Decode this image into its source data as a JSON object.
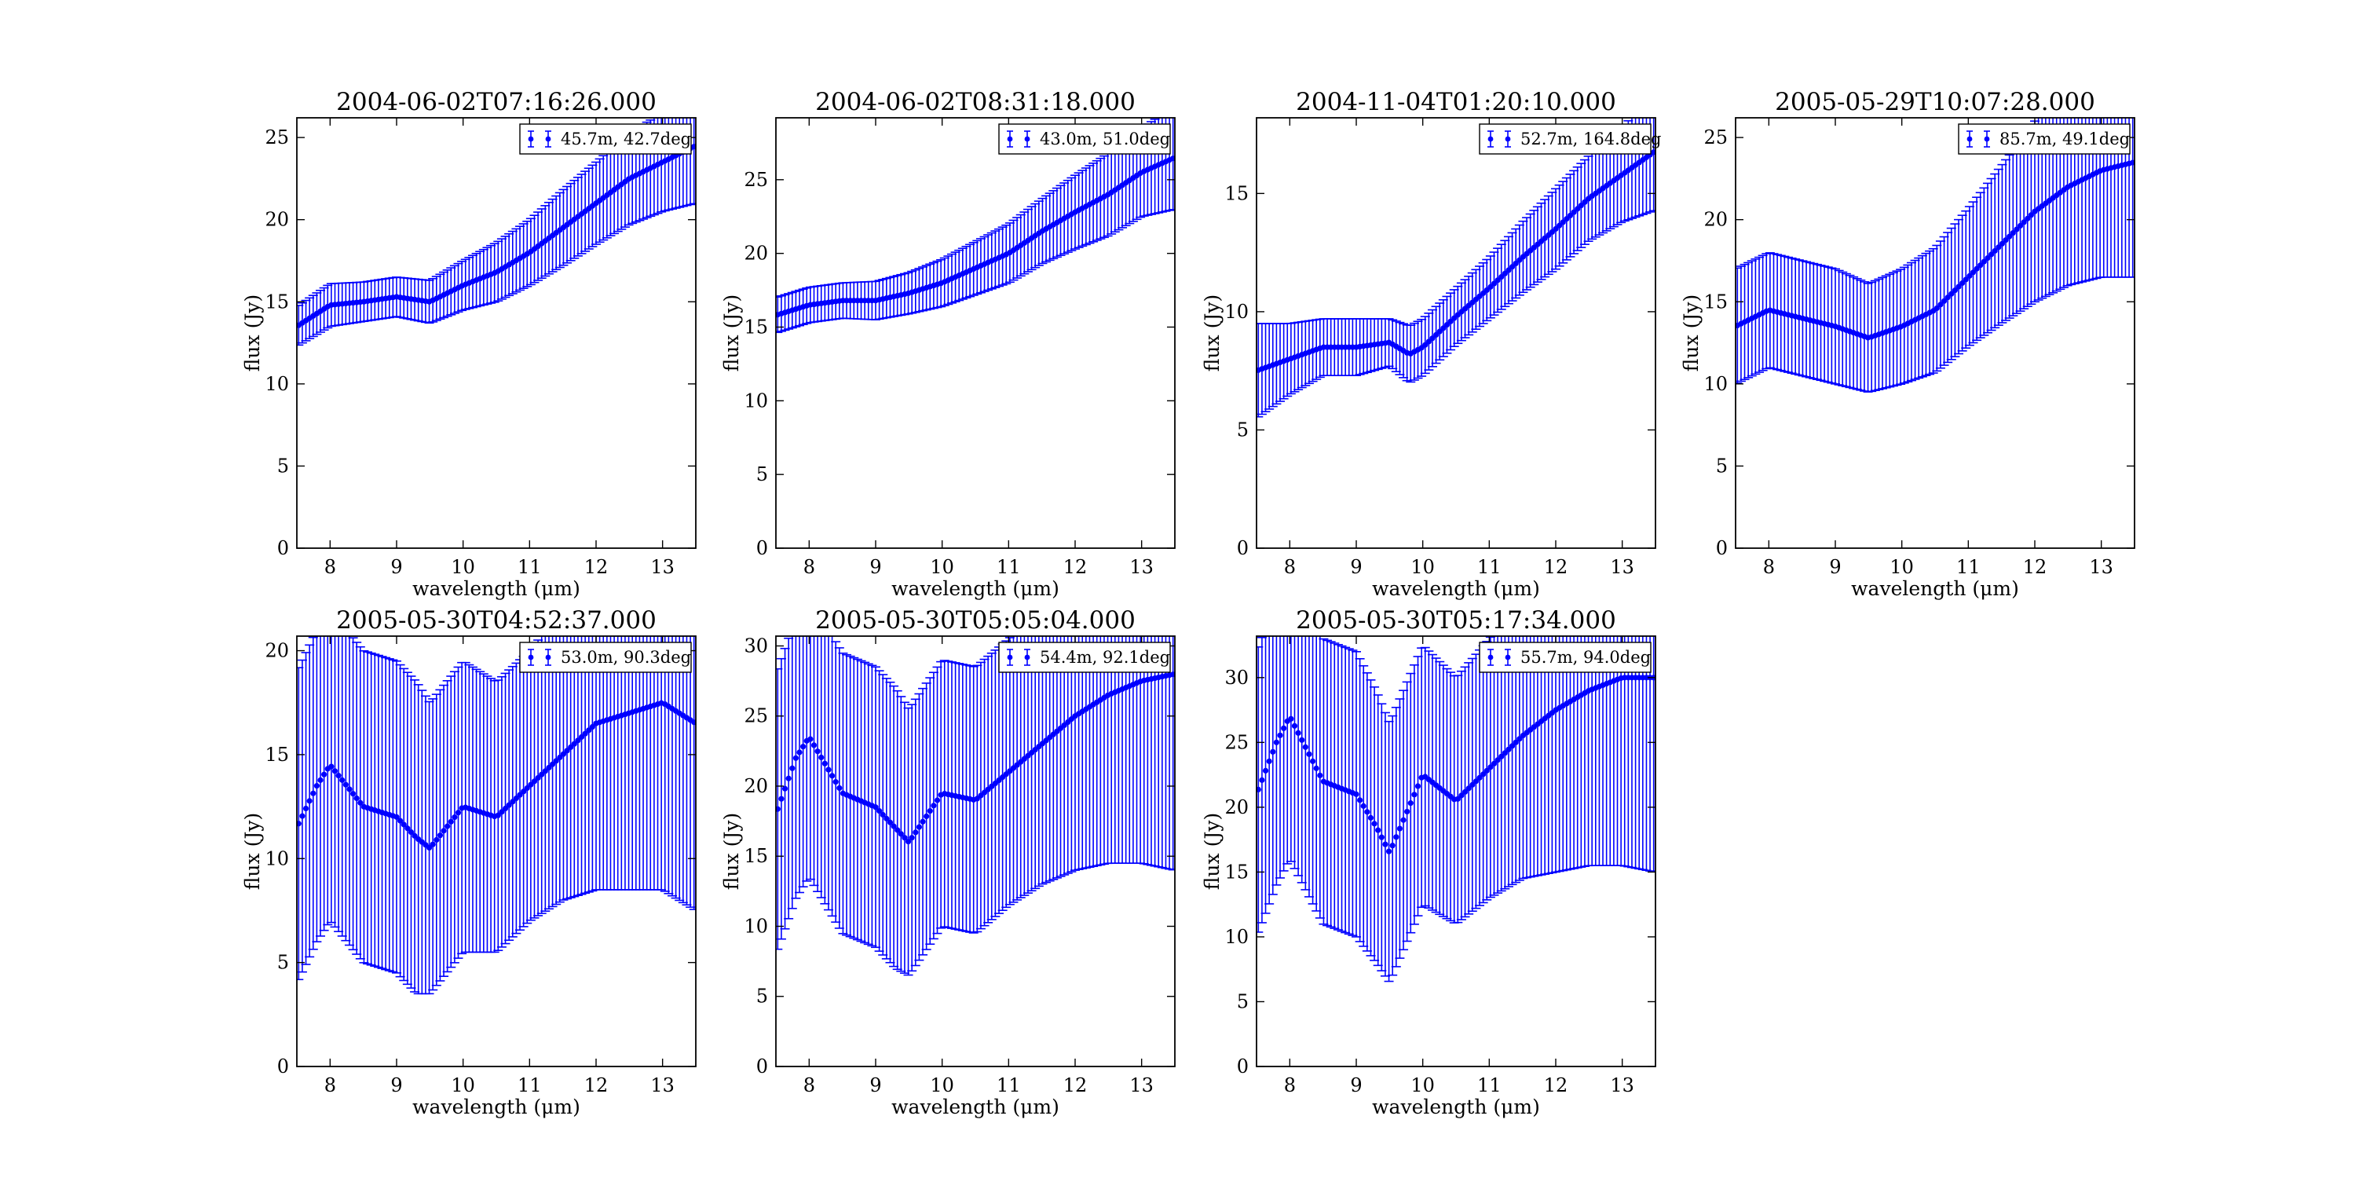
{
  "chart_data": [
    {
      "type": "scatter",
      "title": "2004-06-02T07:16:26.000",
      "xlabel": "wavelength (μm)",
      "ylabel": "flux (Jy)",
      "xlim": [
        7.5,
        13.5
      ],
      "ylim": [
        0,
        26.2
      ],
      "xticks": [
        8,
        9,
        10,
        11,
        12,
        13
      ],
      "yticks": [
        0,
        5,
        10,
        15,
        20,
        25
      ],
      "legend": "45.7m, 42.7deg",
      "legend_position": "upper right",
      "grid": false,
      "series": [
        {
          "x": [
            7.5,
            8.0,
            8.5,
            9.0,
            9.5,
            10.0,
            10.5,
            11.0,
            11.5,
            12.0,
            12.5,
            13.0,
            13.5
          ],
          "y": [
            13.5,
            14.8,
            15.0,
            15.3,
            15.0,
            16.0,
            16.8,
            18.0,
            19.5,
            21.0,
            22.5,
            23.5,
            24.5
          ],
          "yerr": [
            1.2,
            1.3,
            1.2,
            1.2,
            1.3,
            1.5,
            1.8,
            2.0,
            2.3,
            2.5,
            2.8,
            3.0,
            3.5
          ]
        }
      ]
    },
    {
      "type": "scatter",
      "title": "2004-06-02T08:31:18.000",
      "xlabel": "wavelength (μm)",
      "ylabel": "flux (Jy)",
      "xlim": [
        7.5,
        13.5
      ],
      "ylim": [
        0,
        29.2
      ],
      "xticks": [
        8,
        9,
        10,
        11,
        12,
        13
      ],
      "yticks": [
        0,
        5,
        10,
        15,
        20,
        25
      ],
      "legend": "43.0m, 51.0deg",
      "legend_position": "upper right",
      "grid": false,
      "series": [
        {
          "x": [
            7.5,
            8.0,
            8.5,
            9.0,
            9.5,
            10.0,
            10.5,
            11.0,
            11.5,
            12.0,
            12.5,
            13.0,
            13.5
          ],
          "y": [
            15.8,
            16.5,
            16.8,
            16.8,
            17.3,
            18.0,
            19.0,
            20.0,
            21.5,
            22.8,
            24.0,
            25.5,
            26.5
          ],
          "yerr": [
            1.2,
            1.2,
            1.2,
            1.3,
            1.4,
            1.6,
            1.8,
            2.0,
            2.2,
            2.5,
            2.8,
            3.0,
            3.5
          ]
        }
      ]
    },
    {
      "type": "scatter",
      "title": "2004-11-04T01:20:10.000",
      "xlabel": "wavelength (μm)",
      "ylabel": "flux (Jy)",
      "xlim": [
        7.5,
        13.5
      ],
      "ylim": [
        0,
        18.2
      ],
      "xticks": [
        8,
        9,
        10,
        11,
        12,
        13
      ],
      "yticks": [
        0,
        5,
        10,
        15
      ],
      "legend": "52.7m, 164.8deg",
      "legend_position": "upper right",
      "grid": false,
      "series": [
        {
          "x": [
            7.5,
            8.0,
            8.5,
            9.0,
            9.5,
            9.8,
            10.0,
            10.5,
            11.0,
            11.5,
            12.0,
            12.5,
            13.0,
            13.5
          ],
          "y": [
            7.5,
            8.0,
            8.5,
            8.5,
            8.7,
            8.2,
            8.5,
            9.8,
            11.0,
            12.3,
            13.5,
            14.8,
            15.8,
            16.8
          ],
          "yerr": [
            2.0,
            1.5,
            1.2,
            1.2,
            1.0,
            1.2,
            1.2,
            1.2,
            1.3,
            1.5,
            1.7,
            1.8,
            2.0,
            2.5
          ]
        }
      ]
    },
    {
      "type": "scatter",
      "title": "2005-05-29T10:07:28.000",
      "xlabel": "wavelength (μm)",
      "ylabel": "flux (Jy)",
      "xlim": [
        7.5,
        13.5
      ],
      "ylim": [
        0,
        26.2
      ],
      "xticks": [
        8,
        9,
        10,
        11,
        12,
        13
      ],
      "yticks": [
        0,
        5,
        10,
        15,
        20,
        25
      ],
      "legend": "85.7m, 49.1deg",
      "legend_position": "upper right",
      "grid": false,
      "series": [
        {
          "x": [
            7.5,
            8.0,
            8.5,
            9.0,
            9.5,
            10.0,
            10.5,
            11.0,
            11.5,
            12.0,
            12.5,
            13.0,
            13.5
          ],
          "y": [
            13.5,
            14.5,
            14.0,
            13.5,
            12.8,
            13.5,
            14.5,
            16.5,
            18.5,
            20.5,
            22.0,
            23.0,
            23.5
          ],
          "yerr": [
            3.5,
            3.5,
            3.5,
            3.5,
            3.3,
            3.5,
            3.8,
            4.2,
            4.8,
            5.5,
            6.0,
            6.5,
            7.0
          ]
        }
      ]
    },
    {
      "type": "scatter",
      "title": "2005-05-30T04:52:37.000",
      "xlabel": "wavelength (μm)",
      "ylabel": "flux (Jy)",
      "xlim": [
        7.5,
        13.5
      ],
      "ylim": [
        0,
        20.7
      ],
      "xticks": [
        8,
        9,
        10,
        11,
        12,
        13
      ],
      "yticks": [
        0,
        5,
        10,
        15,
        20
      ],
      "legend": "53.0m, 90.3deg",
      "legend_position": "upper right",
      "grid": false,
      "series": [
        {
          "x": [
            7.5,
            7.8,
            8.0,
            8.5,
            9.0,
            9.3,
            9.5,
            10.0,
            10.5,
            11.0,
            11.5,
            12.0,
            12.5,
            13.0,
            13.5
          ],
          "y": [
            11.5,
            13.5,
            14.5,
            12.5,
            12.0,
            11.0,
            10.5,
            12.5,
            12.0,
            13.5,
            15.0,
            16.5,
            17.0,
            17.5,
            16.5
          ],
          "yerr": [
            7.5,
            7.5,
            7.5,
            7.5,
            7.5,
            7.5,
            7.0,
            7.0,
            6.5,
            6.5,
            7.0,
            8.0,
            8.5,
            9.0,
            9.0
          ]
        }
      ]
    },
    {
      "type": "scatter",
      "title": "2005-05-30T05:05:04.000",
      "xlabel": "wavelength (μm)",
      "ylabel": "flux (Jy)",
      "xlim": [
        7.5,
        13.5
      ],
      "ylim": [
        0,
        30.7
      ],
      "xticks": [
        8,
        9,
        10,
        11,
        12,
        13
      ],
      "yticks": [
        0,
        5,
        10,
        15,
        20,
        25,
        30
      ],
      "legend": "54.4m, 92.1deg",
      "legend_position": "upper right",
      "grid": false,
      "series": [
        {
          "x": [
            7.5,
            7.8,
            8.0,
            8.5,
            9.0,
            9.3,
            9.5,
            10.0,
            10.5,
            11.0,
            11.5,
            12.0,
            12.5,
            13.0,
            13.5
          ],
          "y": [
            18.0,
            22.0,
            23.5,
            19.5,
            18.5,
            17.0,
            16.0,
            19.5,
            19.0,
            21.0,
            23.0,
            25.0,
            26.5,
            27.5,
            28.0
          ],
          "yerr": [
            10.0,
            10.0,
            10.0,
            10.0,
            10.0,
            10.0,
            9.5,
            9.5,
            9.5,
            9.5,
            10.0,
            11.0,
            12.0,
            13.0,
            14.0
          ]
        }
      ]
    },
    {
      "type": "scatter",
      "title": "2005-05-30T05:17:34.000",
      "xlabel": "wavelength (μm)",
      "ylabel": "flux (Jy)",
      "xlim": [
        7.5,
        13.5
      ],
      "ylim": [
        0,
        33.2
      ],
      "xticks": [
        8,
        9,
        10,
        11,
        12,
        13
      ],
      "yticks": [
        0,
        5,
        10,
        15,
        20,
        25,
        30
      ],
      "legend": "55.7m, 94.0deg",
      "legend_position": "upper right",
      "grid": false,
      "series": [
        {
          "x": [
            7.5,
            7.8,
            8.0,
            8.5,
            9.0,
            9.3,
            9.5,
            10.0,
            10.5,
            11.0,
            11.5,
            12.0,
            12.5,
            13.0,
            13.5
          ],
          "y": [
            21.0,
            25.0,
            27.0,
            22.0,
            21.0,
            18.5,
            16.5,
            22.5,
            20.5,
            23.0,
            25.5,
            27.5,
            29.0,
            30.0,
            30.0
          ],
          "yerr": [
            11.0,
            11.0,
            11.0,
            11.0,
            11.0,
            10.5,
            10.0,
            10.0,
            9.5,
            10.0,
            11.0,
            12.5,
            13.5,
            14.5,
            15.0
          ]
        }
      ]
    }
  ]
}
